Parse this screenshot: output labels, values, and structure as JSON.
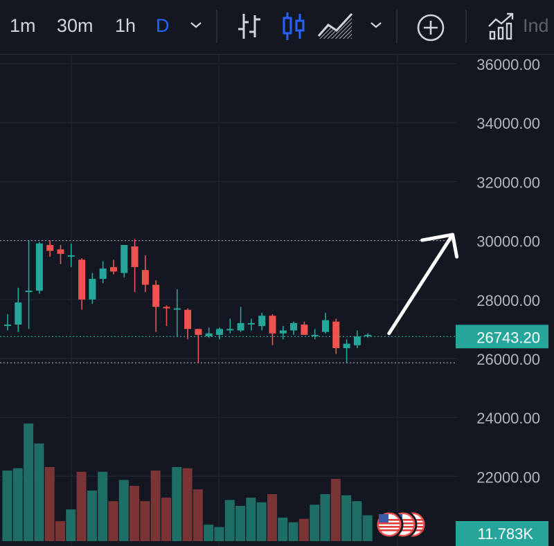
{
  "toolbar": {
    "timeframes": [
      "1m",
      "30m",
      "1h",
      "D"
    ],
    "active_timeframe": "D",
    "icons": [
      "chevron-down-icon",
      "bar-chart-icon",
      "candlestick-icon",
      "area-chart-icon",
      "chevron-down-icon",
      "add-compare-icon",
      "indicators-icon"
    ],
    "indicators_label": "Ind"
  },
  "colors": {
    "background": "#131722",
    "up": "#26a69a",
    "down": "#ef5350",
    "up_volume": "#1e6e66",
    "down_volume": "#7a3436",
    "active_tab": "#2962ff",
    "last_price_bg": "#26a69a"
  },
  "price_axis": {
    "labels": [
      "36000.00",
      "34000.00",
      "32000.00",
      "30000.00",
      "28000.00",
      "26000.00",
      "24000.00",
      "22000.00"
    ],
    "last_price": "26743.20",
    "volume_label": "11.783K"
  },
  "chart_data": {
    "type": "candlestick",
    "ylim": [
      20300,
      36300
    ],
    "grid": true,
    "horizontal_dotted_levels": [
      30000,
      25850
    ],
    "last_price": 26743.2,
    "candles": [
      {
        "o": 27150,
        "h": 27500,
        "l": 26950,
        "c": 27150,
        "v": 60
      },
      {
        "o": 27150,
        "h": 28400,
        "l": 26900,
        "c": 27900,
        "v": 62
      },
      {
        "o": 28300,
        "h": 30000,
        "l": 27000,
        "c": 28300,
        "v": 100
      },
      {
        "o": 28300,
        "h": 29950,
        "l": 28200,
        "c": 29900,
        "v": 83
      },
      {
        "o": 29850,
        "h": 30000,
        "l": 29450,
        "c": 29650,
        "v": 63
      },
      {
        "o": 29700,
        "h": 29850,
        "l": 29200,
        "c": 29550,
        "v": 17
      },
      {
        "o": 29500,
        "h": 29900,
        "l": 29100,
        "c": 29500,
        "v": 27
      },
      {
        "o": 29350,
        "h": 29400,
        "l": 27650,
        "c": 28000,
        "v": 59
      },
      {
        "o": 28000,
        "h": 28900,
        "l": 27850,
        "c": 28700,
        "v": 43
      },
      {
        "o": 28700,
        "h": 29300,
        "l": 28550,
        "c": 29050,
        "v": 59
      },
      {
        "o": 29100,
        "h": 29350,
        "l": 28850,
        "c": 28950,
        "v": 34
      },
      {
        "o": 28900,
        "h": 29850,
        "l": 28750,
        "c": 29850,
        "v": 52
      },
      {
        "o": 29800,
        "h": 30050,
        "l": 28250,
        "c": 29100,
        "v": 47
      },
      {
        "o": 29000,
        "h": 29500,
        "l": 28250,
        "c": 28500,
        "v": 34
      },
      {
        "o": 28500,
        "h": 28650,
        "l": 26900,
        "c": 27750,
        "v": 60
      },
      {
        "o": 27750,
        "h": 27800,
        "l": 27100,
        "c": 27700,
        "v": 37
      },
      {
        "o": 27700,
        "h": 28350,
        "l": 26750,
        "c": 27700,
        "v": 63
      },
      {
        "o": 27650,
        "h": 27700,
        "l": 26650,
        "c": 27000,
        "v": 62
      },
      {
        "o": 27000,
        "h": 27000,
        "l": 25850,
        "c": 26800,
        "v": 44
      },
      {
        "o": 26750,
        "h": 27050,
        "l": 26700,
        "c": 26850,
        "v": 14
      },
      {
        "o": 26800,
        "h": 27050,
        "l": 26650,
        "c": 27000,
        "v": 12
      },
      {
        "o": 27000,
        "h": 27350,
        "l": 26850,
        "c": 27000,
        "v": 35
      },
      {
        "o": 26950,
        "h": 27750,
        "l": 26900,
        "c": 27200,
        "v": 30
      },
      {
        "o": 27200,
        "h": 27350,
        "l": 26950,
        "c": 27200,
        "v": 37
      },
      {
        "o": 27100,
        "h": 27550,
        "l": 26950,
        "c": 27450,
        "v": 33
      },
      {
        "o": 27450,
        "h": 27500,
        "l": 26450,
        "c": 26850,
        "v": 40
      },
      {
        "o": 26850,
        "h": 27100,
        "l": 26650,
        "c": 26950,
        "v": 20
      },
      {
        "o": 26950,
        "h": 27250,
        "l": 26800,
        "c": 27200,
        "v": 16
      },
      {
        "o": 27150,
        "h": 27250,
        "l": 26850,
        "c": 26800,
        "v": 19
      },
      {
        "o": 26800,
        "h": 27000,
        "l": 26650,
        "c": 26800,
        "v": 31
      },
      {
        "o": 26900,
        "h": 27550,
        "l": 26850,
        "c": 27300,
        "v": 40
      },
      {
        "o": 27250,
        "h": 27350,
        "l": 26150,
        "c": 26350,
        "v": 53
      },
      {
        "o": 26350,
        "h": 26650,
        "l": 25850,
        "c": 26500,
        "v": 39
      },
      {
        "o": 26450,
        "h": 26950,
        "l": 26350,
        "c": 26750,
        "v": 34
      },
      {
        "o": 26750,
        "h": 26850,
        "l": 26700,
        "c": 26800,
        "v": 22
      }
    ]
  },
  "annotation": {
    "type": "arrow",
    "from": [
      36,
      26850
    ],
    "to": [
      42,
      30200
    ],
    "color": "#ffffff"
  }
}
